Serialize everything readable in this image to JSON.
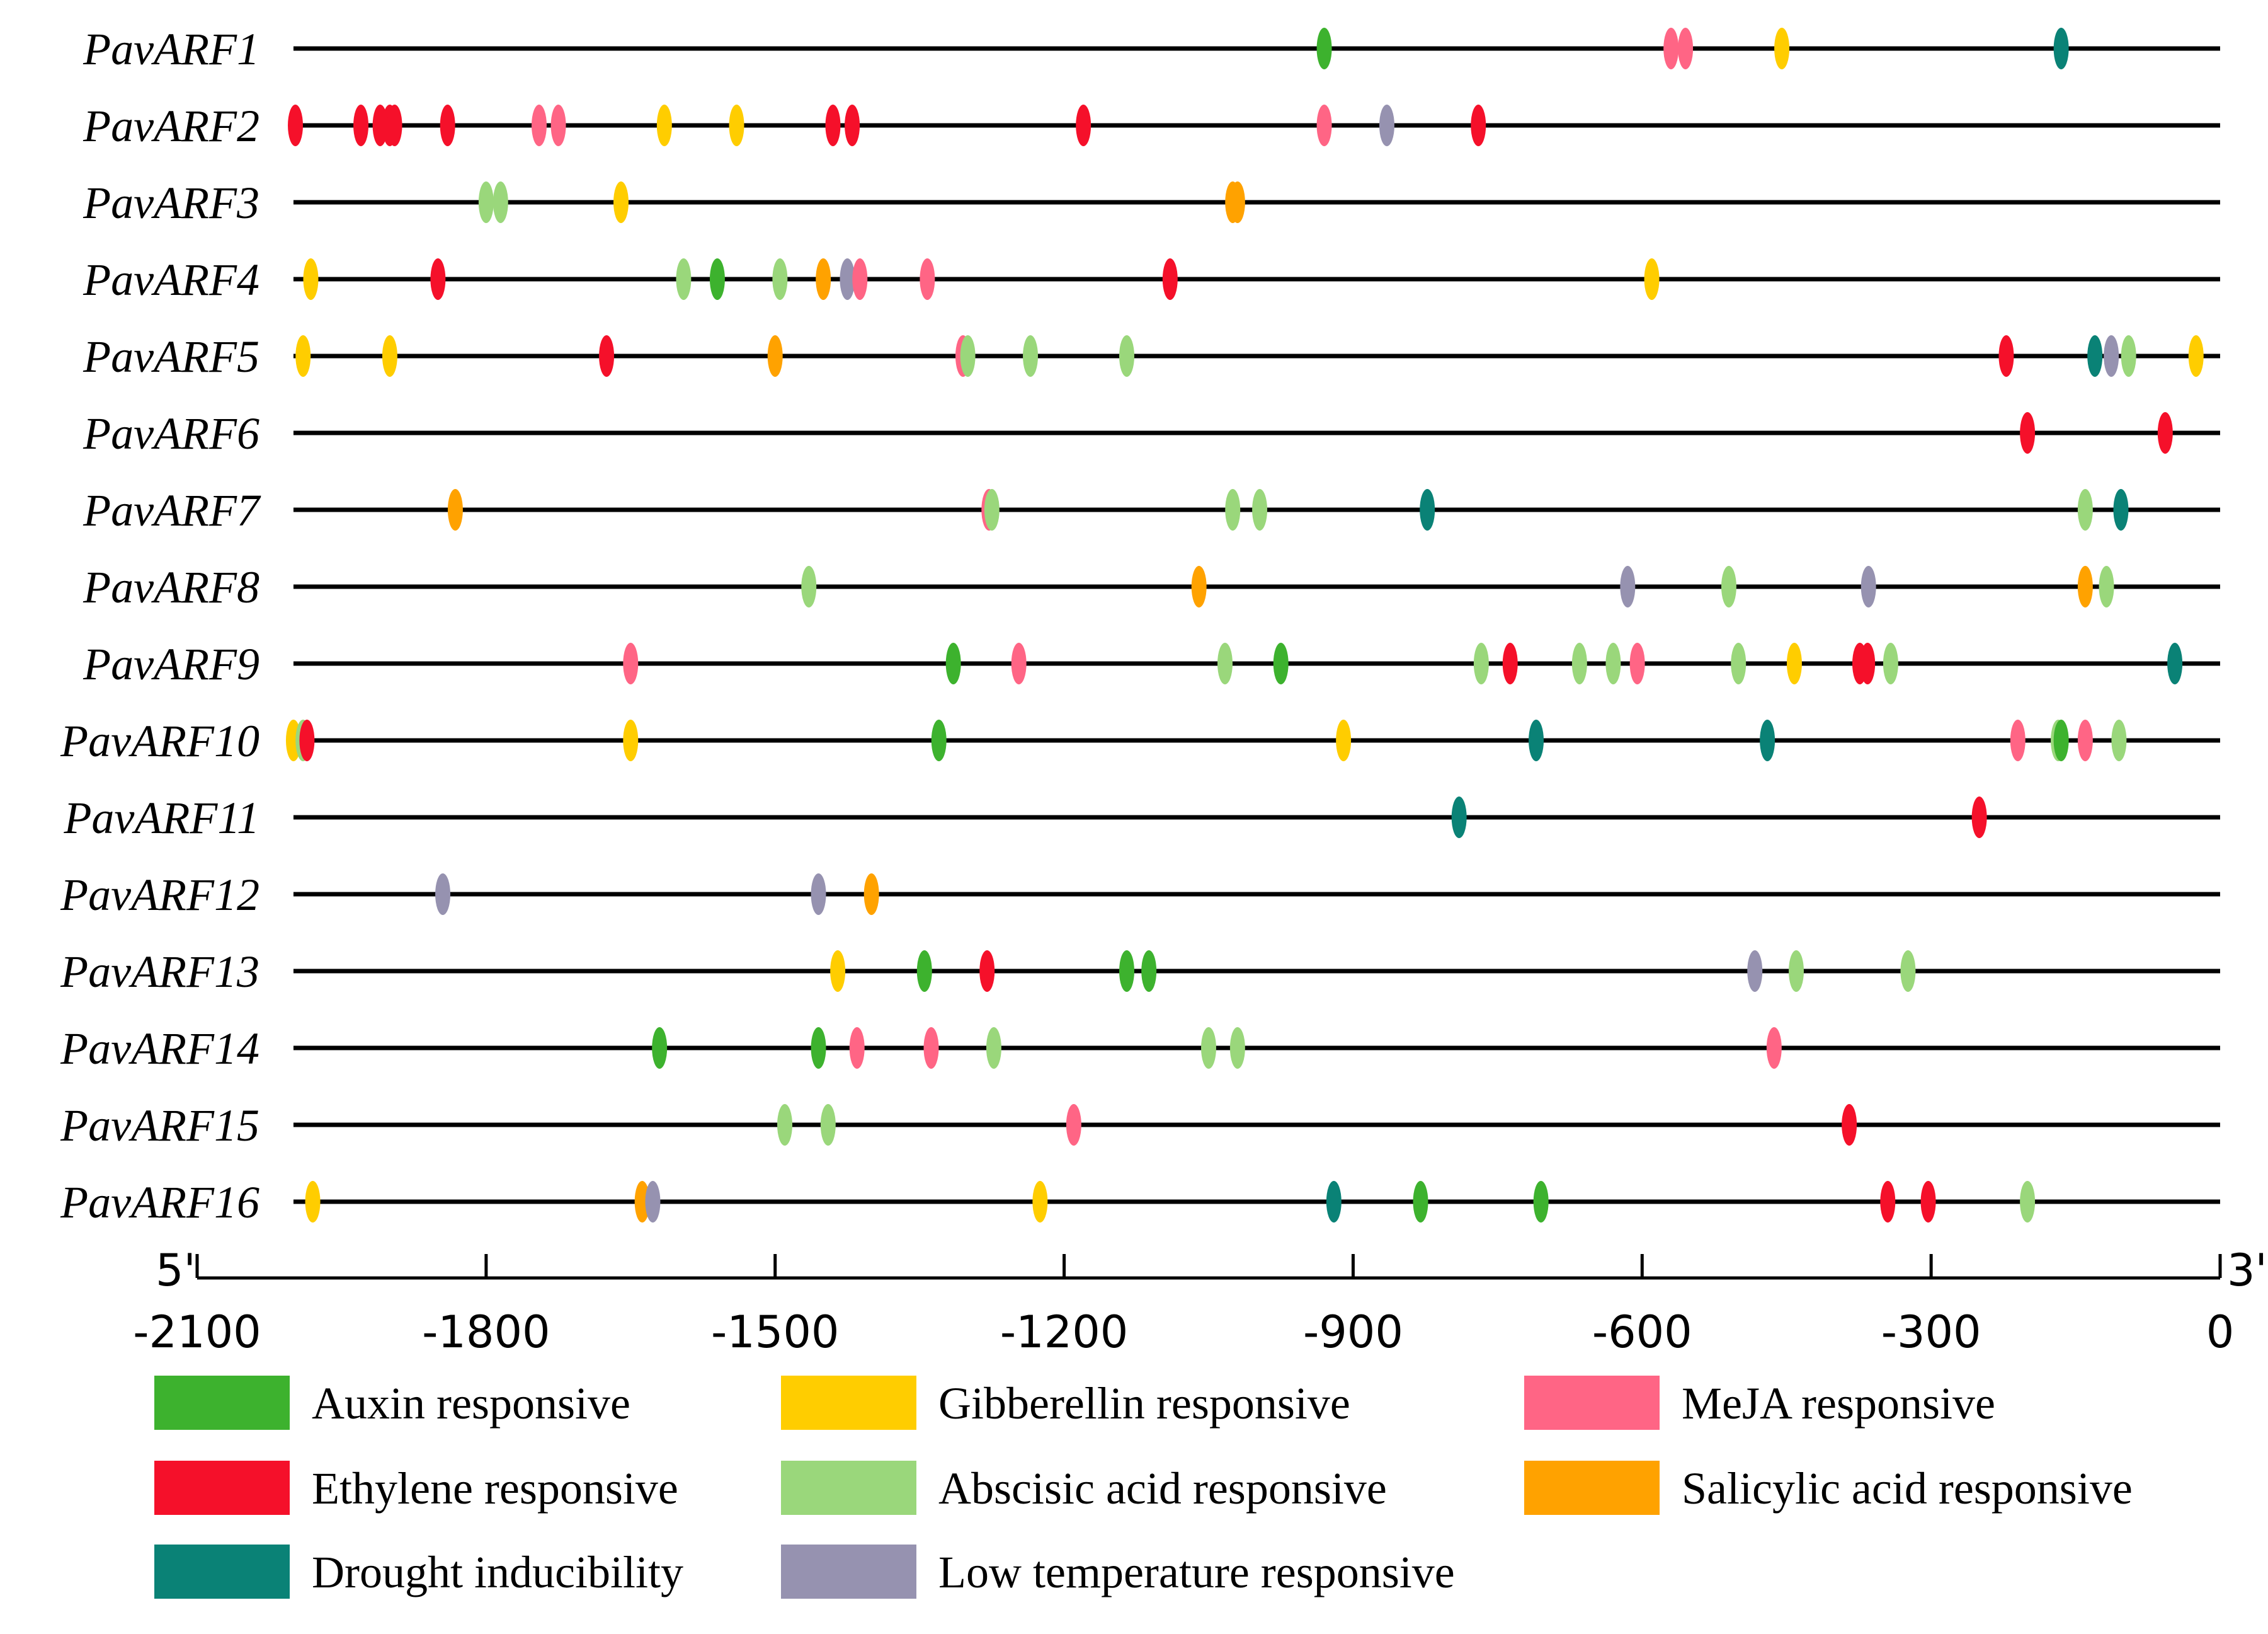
{
  "chart_data": {
    "type": "scatter",
    "title": "",
    "xlabel": "",
    "ylabel": "",
    "xlim": [
      -2100,
      0
    ],
    "x_ticks": [
      "-2100",
      "-1800",
      "-1500",
      "-1200",
      "-900",
      "-600",
      "-300",
      "0"
    ],
    "x_tick_values": [
      -2100,
      -1800,
      -1500,
      -1200,
      -900,
      -600,
      -300,
      0
    ],
    "start_label": "5'",
    "end_label": "3'",
    "gene_track_start": -2000,
    "categories": [
      {
        "key": "aux",
        "name": "Auxin responsive",
        "color": "#3db22e"
      },
      {
        "key": "eth",
        "name": "Ethylene responsive",
        "color": "#f5102a"
      },
      {
        "key": "dro",
        "name": "Drought inducibility",
        "color": "#0a8276"
      },
      {
        "key": "gib",
        "name": "Gibberellin responsive",
        "color": "#ffcd00"
      },
      {
        "key": "aba",
        "name": "Abscisic acid responsive",
        "color": "#9ad77b"
      },
      {
        "key": "low",
        "name": "Low temperature responsive",
        "color": "#9692b0"
      },
      {
        "key": "meja",
        "name": "MeJA responsive",
        "color": "#ff6585"
      },
      {
        "key": "sal",
        "name": "Salicylic acid responsive",
        "color": "#ffa200"
      }
    ],
    "series": [
      {
        "name": "PavARF1",
        "elements": [
          [
            "aux",
            -930
          ],
          [
            "meja",
            -570
          ],
          [
            "meja",
            -555
          ],
          [
            "gib",
            -455
          ],
          [
            "dro",
            -165
          ]
        ]
      },
      {
        "name": "PavARF2",
        "elements": [
          [
            "eth",
            -1998
          ],
          [
            "eth",
            -1930
          ],
          [
            "eth",
            -1910
          ],
          [
            "eth",
            -1900
          ],
          [
            "eth",
            -1895
          ],
          [
            "eth",
            -1840
          ],
          [
            "meja",
            -1745
          ],
          [
            "meja",
            -1725
          ],
          [
            "gib",
            -1615
          ],
          [
            "gib",
            -1540
          ],
          [
            "eth",
            -1440
          ],
          [
            "eth",
            -1420
          ],
          [
            "eth",
            -1180
          ],
          [
            "meja",
            -930
          ],
          [
            "low",
            -865
          ],
          [
            "eth",
            -770
          ]
        ]
      },
      {
        "name": "PavARF3",
        "elements": [
          [
            "aba",
            -1800
          ],
          [
            "aba",
            -1785
          ],
          [
            "gib",
            -1660
          ],
          [
            "sal",
            -1025
          ],
          [
            "sal",
            -1020
          ]
        ]
      },
      {
        "name": "PavARF4",
        "elements": [
          [
            "gib",
            -1982
          ],
          [
            "eth",
            -1850
          ],
          [
            "aba",
            -1595
          ],
          [
            "aux",
            -1560
          ],
          [
            "aba",
            -1495
          ],
          [
            "sal",
            -1450
          ],
          [
            "low",
            -1425
          ],
          [
            "meja",
            -1412
          ],
          [
            "meja",
            -1342
          ],
          [
            "eth",
            -1090
          ],
          [
            "gib",
            -590
          ]
        ]
      },
      {
        "name": "PavARF5",
        "elements": [
          [
            "gib",
            -1990
          ],
          [
            "gib",
            -1900
          ],
          [
            "eth",
            -1675
          ],
          [
            "sal",
            -1500
          ],
          [
            "meja",
            -1305
          ],
          [
            "aba",
            -1300
          ],
          [
            "aba",
            -1235
          ],
          [
            "aba",
            -1135
          ],
          [
            "eth",
            -222
          ],
          [
            "dro",
            -130
          ],
          [
            "low",
            -113
          ],
          [
            "aba",
            -95
          ],
          [
            "gib",
            -25
          ]
        ]
      },
      {
        "name": "PavARF6",
        "elements": [
          [
            "eth",
            -200
          ],
          [
            "eth",
            -57
          ]
        ]
      },
      {
        "name": "PavARF7",
        "elements": [
          [
            "sal",
            -1832
          ],
          [
            "meja",
            -1278
          ],
          [
            "aba",
            -1275
          ],
          [
            "aba",
            -1025
          ],
          [
            "aba",
            -997
          ],
          [
            "dro",
            -823
          ],
          [
            "aba",
            -140
          ],
          [
            "dro",
            -103
          ]
        ]
      },
      {
        "name": "PavARF8",
        "elements": [
          [
            "aba",
            -1465
          ],
          [
            "sal",
            -1060
          ],
          [
            "low",
            -615
          ],
          [
            "aba",
            -510
          ],
          [
            "low",
            -365
          ],
          [
            "sal",
            -140
          ],
          [
            "aba",
            -118
          ]
        ]
      },
      {
        "name": "PavARF9",
        "elements": [
          [
            "meja",
            -1650
          ],
          [
            "aux",
            -1315
          ],
          [
            "meja",
            -1247
          ],
          [
            "aba",
            -1033
          ],
          [
            "aux",
            -975
          ],
          [
            "aba",
            -767
          ],
          [
            "eth",
            -737
          ],
          [
            "aba",
            -665
          ],
          [
            "aba",
            -630
          ],
          [
            "meja",
            -605
          ],
          [
            "aba",
            -500
          ],
          [
            "gib",
            -442
          ],
          [
            "eth",
            -374
          ],
          [
            "eth",
            -366
          ],
          [
            "aba",
            -342
          ],
          [
            "dro",
            -47
          ]
        ]
      },
      {
        "name": "PavARF10",
        "elements": [
          [
            "gib",
            -2000
          ],
          [
            "aba",
            -1990
          ],
          [
            "eth",
            -1986
          ],
          [
            "gib",
            -1650
          ],
          [
            "aux",
            -1330
          ],
          [
            "gib",
            -910
          ],
          [
            "dro",
            -710
          ],
          [
            "dro",
            -470
          ],
          [
            "meja",
            -210
          ],
          [
            "aba",
            -168
          ],
          [
            "aux",
            -165
          ],
          [
            "meja",
            -140
          ],
          [
            "aba",
            -105
          ]
        ]
      },
      {
        "name": "PavARF11",
        "elements": [
          [
            "dro",
            -790
          ],
          [
            "eth",
            -250
          ]
        ]
      },
      {
        "name": "PavARF12",
        "elements": [
          [
            "low",
            -1845
          ],
          [
            "low",
            -1455
          ],
          [
            "sal",
            -1400
          ]
        ]
      },
      {
        "name": "PavARF13",
        "elements": [
          [
            "gib",
            -1435
          ],
          [
            "aux",
            -1345
          ],
          [
            "eth",
            -1280
          ],
          [
            "aux",
            -1135
          ],
          [
            "aux",
            -1112
          ],
          [
            "low",
            -483
          ],
          [
            "aba",
            -440
          ],
          [
            "aba",
            -324
          ]
        ]
      },
      {
        "name": "PavARF14",
        "elements": [
          [
            "aux",
            -1620
          ],
          [
            "aux",
            -1455
          ],
          [
            "meja",
            -1415
          ],
          [
            "meja",
            -1338
          ],
          [
            "aba",
            -1273
          ],
          [
            "aba",
            -1050
          ],
          [
            "aba",
            -1020
          ],
          [
            "meja",
            -463
          ]
        ]
      },
      {
        "name": "PavARF15",
        "elements": [
          [
            "aba",
            -1490
          ],
          [
            "aba",
            -1445
          ],
          [
            "meja",
            -1190
          ],
          [
            "eth",
            -385
          ]
        ]
      },
      {
        "name": "PavARF16",
        "elements": [
          [
            "gib",
            -1980
          ],
          [
            "sal",
            -1638
          ],
          [
            "low",
            -1627
          ],
          [
            "gib",
            -1225
          ],
          [
            "dro",
            -920
          ],
          [
            "aux",
            -830
          ],
          [
            "aux",
            -705
          ],
          [
            "eth",
            -345
          ],
          [
            "eth",
            -303
          ],
          [
            "aba",
            -200
          ]
        ]
      }
    ]
  }
}
